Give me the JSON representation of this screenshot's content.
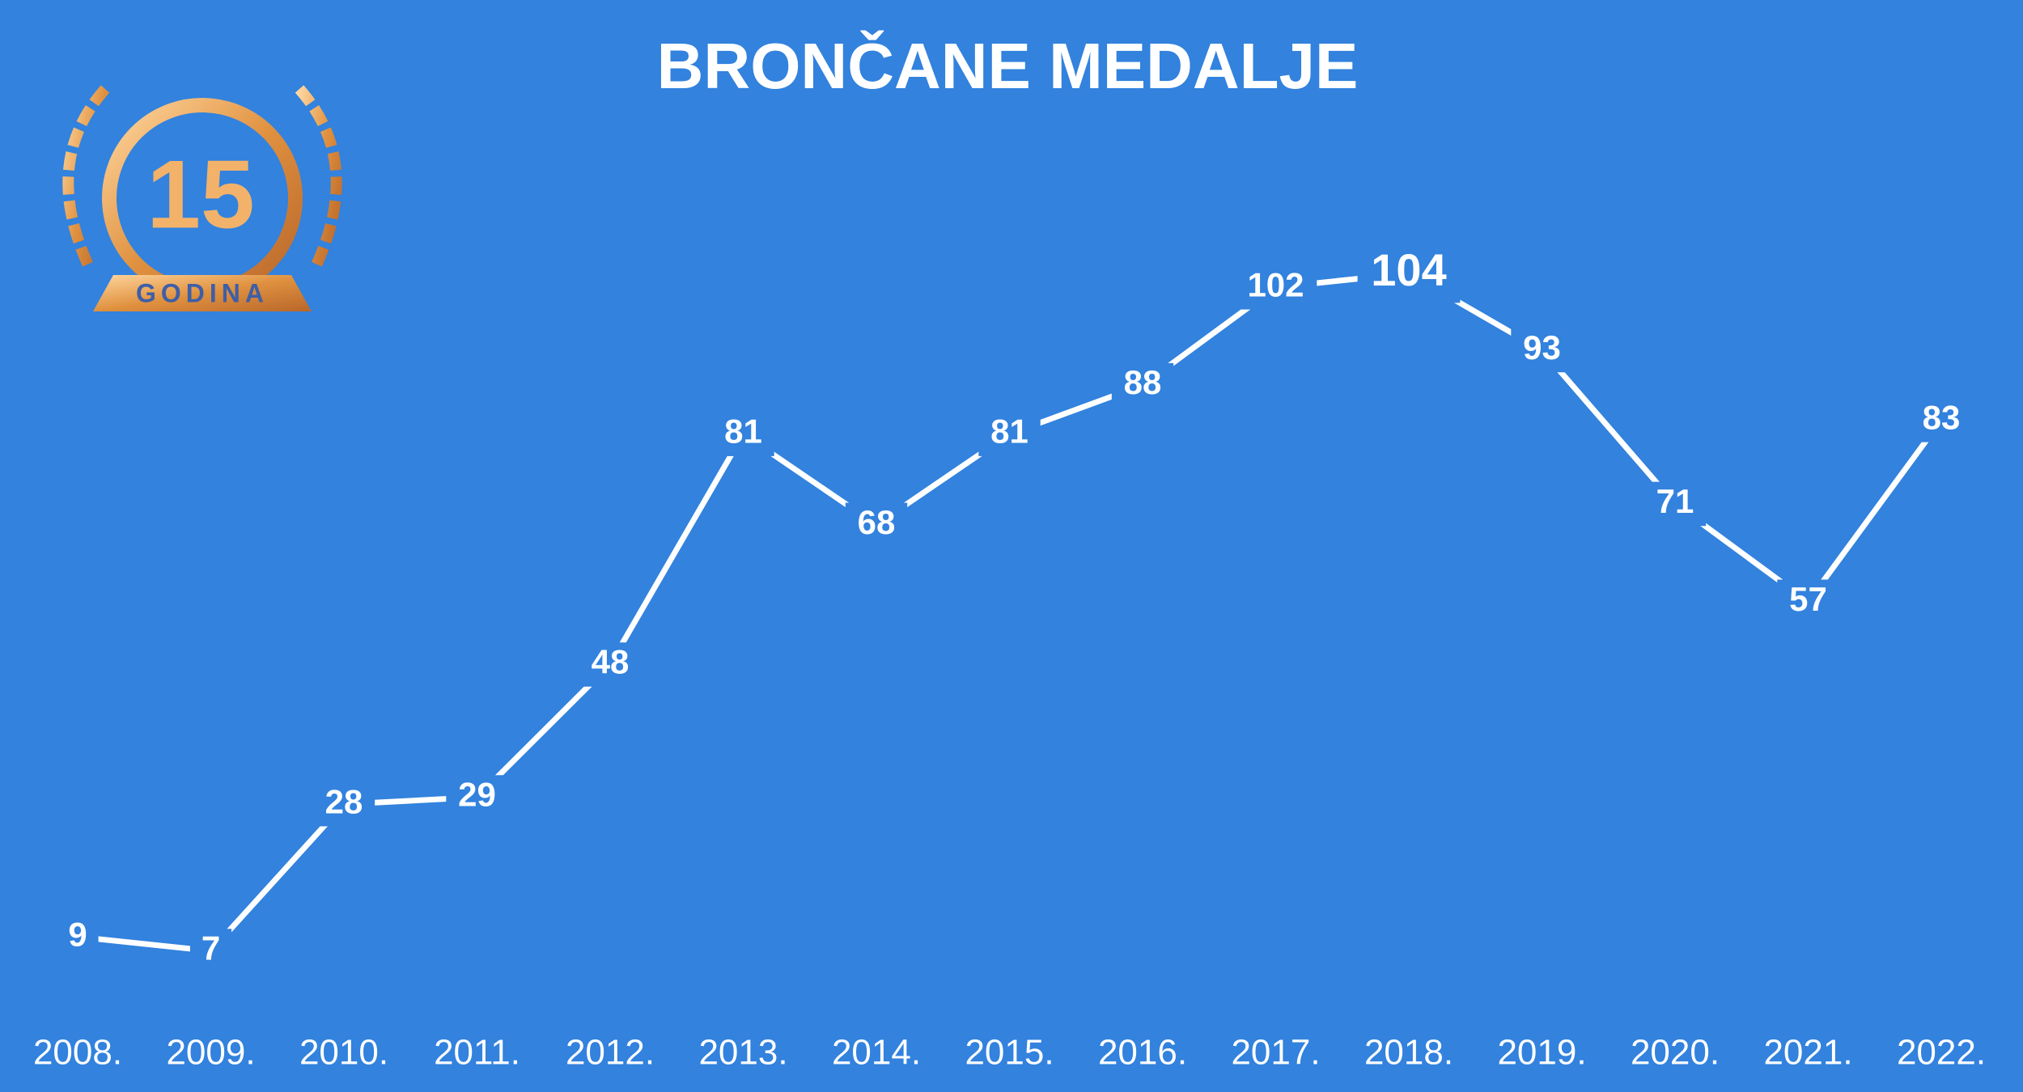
{
  "chart_data": {
    "type": "line",
    "title": "BRONČANE MEDALJE",
    "categories": [
      "2008.",
      "2009.",
      "2010.",
      "2011.",
      "2012.",
      "2013.",
      "2014.",
      "2015.",
      "2016.",
      "2017.",
      "2018.",
      "2019.",
      "2020.",
      "2021.",
      "2022."
    ],
    "values": [
      9,
      7,
      28,
      29,
      48,
      81,
      68,
      81,
      88,
      102,
      104,
      93,
      71,
      57,
      83
    ],
    "color": "#ffffff"
  },
  "logo": {
    "number": "15",
    "text": "GODINA"
  }
}
